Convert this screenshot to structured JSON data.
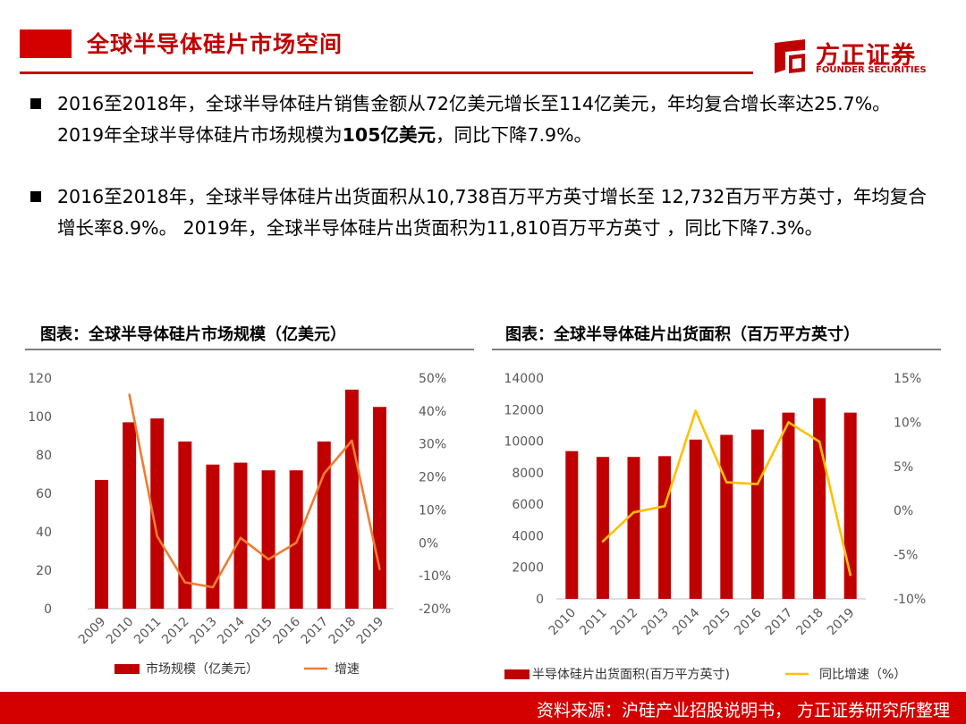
{
  "header": {
    "title": "全球半导体硅片市场空间",
    "logo_cn": "方正证券",
    "logo_en": "FOUNDER SECURITIES"
  },
  "bullets": [
    {
      "pre": "2016至2018年，全球半导体硅片销售金额从72亿美元增长至114亿美元，年均复合增长率达25.7%。 2019年全球半导体硅片市场规模为",
      "bold": "105亿美元",
      "post": "，同比下降7.9%。"
    },
    {
      "pre": "2016至2018年，全球半导体硅片出货面积从10,738百万平方英寸增长至 12,732百万平方英寸，年均复合增长率8.9%。 2019年，全球半导体硅片出货面积为11,810百万平方英寸 ，同比下降7.3%。",
      "bold": "",
      "post": ""
    }
  ],
  "footer": {
    "source": "资料来源：沪硅产业招股说明书， 方正证券研究所整理"
  },
  "colors": {
    "brand_red": "#c00000",
    "bar": "#c00000",
    "line_left": "#ed7d31",
    "line_right": "#ffc000"
  },
  "chart_data": [
    {
      "type": "bar",
      "title": "图表：全球半导体硅片市场规模（亿美元）",
      "categories": [
        "2009",
        "2010",
        "2011",
        "2012",
        "2013",
        "2014",
        "2015",
        "2016",
        "2017",
        "2018",
        "2019"
      ],
      "series": [
        {
          "name": "市场规模（亿美元）",
          "type": "bar",
          "axis": "left",
          "values": [
            67,
            97,
            99,
            87,
            75,
            76,
            72,
            72,
            87,
            114,
            105
          ]
        },
        {
          "name": "增速",
          "type": "line",
          "axis": "right",
          "values": [
            null,
            45,
            2,
            -12,
            -13.5,
            1.5,
            -5,
            0,
            21,
            31,
            -8
          ]
        }
      ],
      "ylim_left": [
        0,
        120
      ],
      "yticks_left": [
        "0",
        "20",
        "40",
        "60",
        "80",
        "100",
        "120"
      ],
      "ylim_right": [
        -20,
        50
      ],
      "yticks_right": [
        "-20%",
        "-10%",
        "0%",
        "10%",
        "20%",
        "30%",
        "40%",
        "50%"
      ],
      "legend": "bottom",
      "grid": false
    },
    {
      "type": "bar",
      "title": "图表：全球半导体硅片出货面积（百万平方英寸）",
      "categories": [
        "2010",
        "2011",
        "2012",
        "2013",
        "2014",
        "2015",
        "2016",
        "2017",
        "2018",
        "2019"
      ],
      "series": [
        {
          "name": "半导体硅片出货面积(百万平方英寸)",
          "type": "bar",
          "axis": "left",
          "values": [
            9370,
            9000,
            9000,
            9050,
            10100,
            10400,
            10738,
            11810,
            12732,
            11810
          ]
        },
        {
          "name": "同比增速（%）",
          "type": "line",
          "axis": "right",
          "values": [
            null,
            -3.5,
            -0.2,
            0.5,
            11.3,
            3.2,
            3,
            10,
            7.8,
            -7.3
          ]
        }
      ],
      "ylim_left": [
        0,
        14000
      ],
      "yticks_left": [
        "0",
        "2000",
        "4000",
        "6000",
        "8000",
        "10000",
        "12000",
        "14000"
      ],
      "ylim_right": [
        -10,
        15
      ],
      "yticks_right": [
        "-10%",
        "-5%",
        "0%",
        "5%",
        "10%",
        "15%"
      ],
      "legend": "bottom",
      "grid": false
    }
  ]
}
